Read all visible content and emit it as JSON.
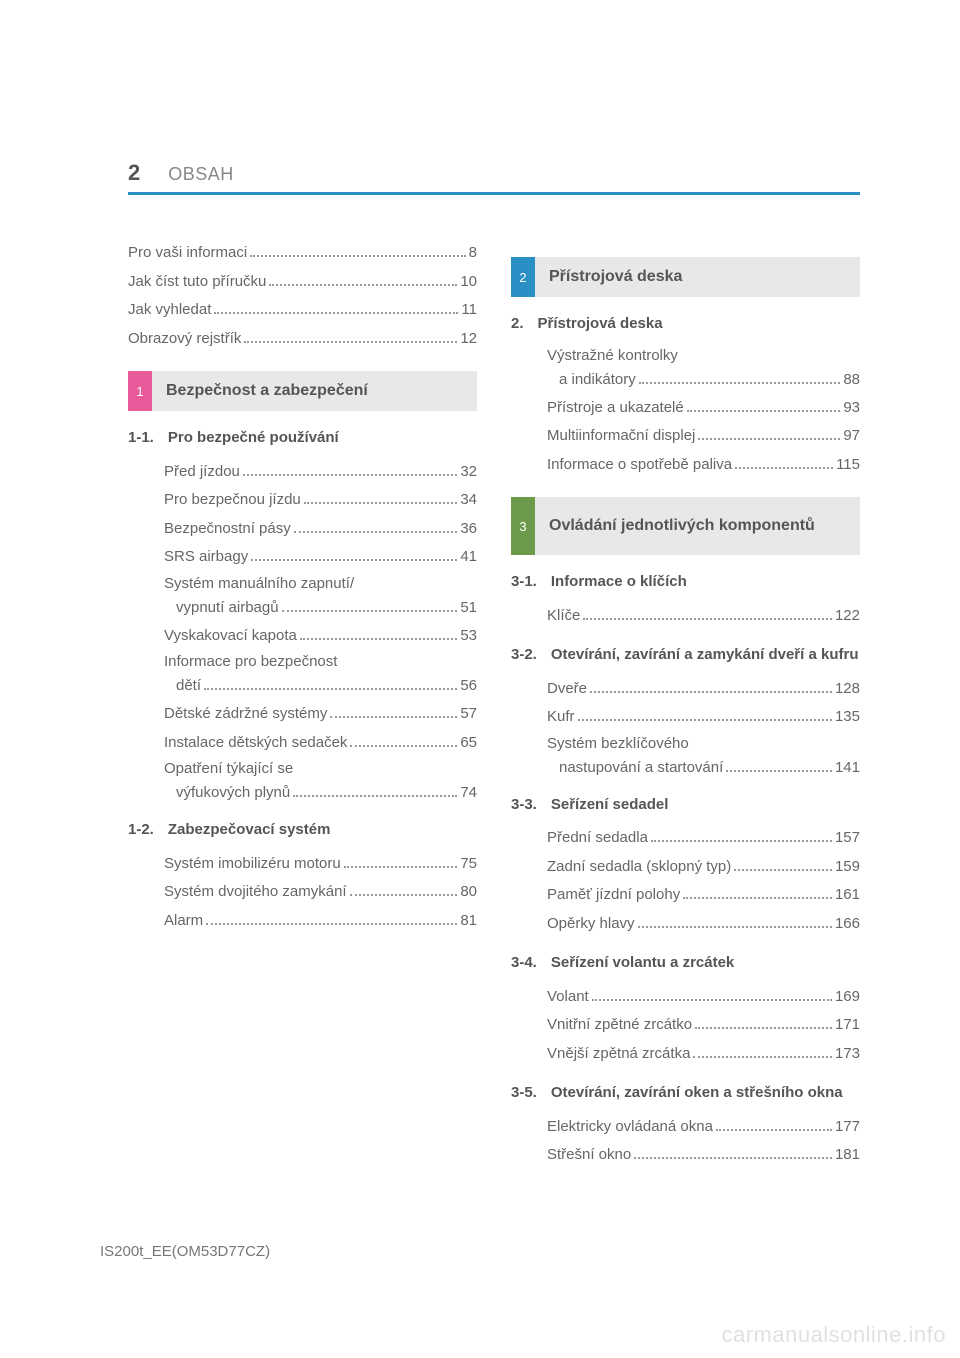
{
  "page_number": "2",
  "header_title": "OBSAH",
  "doc_code": "IS200t_EE(OM53D77CZ)",
  "watermark": "carmanualsonline.info",
  "colors": {
    "rule": "#2a8fc4",
    "tab1": "#e85a9a",
    "tab2": "#2a8fc4",
    "tab3": "#6d9a4a",
    "bar_bg": "#e8e8e8",
    "text": "#666666"
  },
  "pre": [
    {
      "label": "Pro vaši informaci",
      "page": "8"
    },
    {
      "label": "Jak číst tuto příručku",
      "page": "10"
    },
    {
      "label": "Jak vyhledat",
      "page": "11"
    },
    {
      "label": "Obrazový rejstřík",
      "page": "12"
    }
  ],
  "sections": [
    {
      "num": "1",
      "title": "Bezpečnost a zabezpečení",
      "tab_color": "#e85a9a",
      "groups": [
        {
          "num": "1-1.",
          "title": "Pro bezpečné používání",
          "items": [
            {
              "label": "Před jízdou",
              "page": "32"
            },
            {
              "label": "Pro bezpečnou jízdu",
              "page": "34"
            },
            {
              "label": "Bezpečnostní pásy",
              "page": "36"
            },
            {
              "label": "SRS airbagy",
              "page": "41"
            },
            {
              "label1": "Systém manuálního zapnutí/",
              "label2": "vypnutí airbagů",
              "page": "51",
              "wrap": true
            },
            {
              "label": "Vyskakovací kapota",
              "page": "53"
            },
            {
              "label1": "Informace pro bezpečnost",
              "label2": "dětí",
              "page": "56",
              "wrap": true
            },
            {
              "label": "Dětské zádržné systémy",
              "page": "57"
            },
            {
              "label": "Instalace dětských sedaček",
              "page": "65"
            },
            {
              "label1": "Opatření týkající se",
              "label2": "výfukových plynů",
              "page": "74",
              "wrap": true
            }
          ]
        },
        {
          "num": "1-2.",
          "title": "Zabezpečovací systém",
          "items": [
            {
              "label": "Systém imobilizéru motoru",
              "page": "75"
            },
            {
              "label": "Systém dvojitého zamykání",
              "page": "80"
            },
            {
              "label": "Alarm",
              "page": "81"
            }
          ]
        }
      ]
    },
    {
      "num": "2",
      "title": "Přístrojová deska",
      "tab_color": "#2a8fc4",
      "groups": [
        {
          "num": "2.",
          "title": "Přístrojová deska",
          "items": [
            {
              "label1": "Výstražné kontrolky",
              "label2": "a indikátory",
              "page": "88",
              "wrap": true
            },
            {
              "label": "Přístroje a ukazatelé",
              "page": "93"
            },
            {
              "label": "Multiinformační displej",
              "page": "97"
            },
            {
              "label": "Informace o spotřebě paliva",
              "page": "115"
            }
          ]
        }
      ]
    },
    {
      "num": "3",
      "title": "Ovládání jednotlivých komponentů",
      "tab_color": "#6d9a4a",
      "tall": true,
      "groups": [
        {
          "num": "3-1.",
          "title": "Informace o klíčích",
          "items": [
            {
              "label": "Klíče",
              "page": "122"
            }
          ]
        },
        {
          "num": "3-2.",
          "title": "Otevírání, zavírání a zamykání dveří a kufru",
          "items": [
            {
              "label": "Dveře",
              "page": "128"
            },
            {
              "label": "Kufr",
              "page": "135"
            },
            {
              "label1": "Systém bezklíčového",
              "label2": "nastupování a startování",
              "page": "141",
              "wrap": true
            }
          ]
        },
        {
          "num": "3-3.",
          "title": "Seřízení sedadel",
          "items": [
            {
              "label": "Přední sedadla",
              "page": "157"
            },
            {
              "label": "Zadní sedadla (sklopný typ)",
              "page": "159"
            },
            {
              "label": "Paměť jízdní polohy",
              "page": "161"
            },
            {
              "label": "Opěrky hlavy",
              "page": "166"
            }
          ]
        },
        {
          "num": "3-4.",
          "title": "Seřízení volantu a zrcátek",
          "items": [
            {
              "label": "Volant",
              "page": "169"
            },
            {
              "label": "Vnitřní zpětné zrcátko",
              "page": "171"
            },
            {
              "label": "Vnější zpětná zrcátka",
              "page": "173"
            }
          ]
        },
        {
          "num": "3-5.",
          "title": "Otevírání, zavírání oken a střešního okna",
          "items": [
            {
              "label": "Elektricky ovládaná okna",
              "page": "177"
            },
            {
              "label": "Střešní okno",
              "page": "181"
            }
          ]
        }
      ]
    }
  ]
}
